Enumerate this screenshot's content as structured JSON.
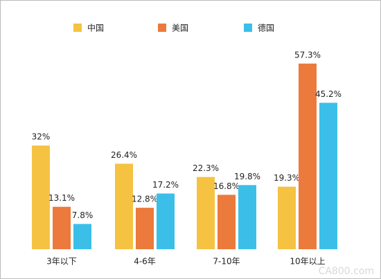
{
  "chart_data": {
    "type": "bar",
    "categories": [
      "3年以下",
      "4-6年",
      "7-10年",
      "10年以上"
    ],
    "series": [
      {
        "name": "中国",
        "color": "#f5c242",
        "values": [
          32,
          26.4,
          22.3,
          19.3
        ],
        "value_labels": [
          "32%",
          "26.4%",
          "22.3%",
          "19.3%"
        ]
      },
      {
        "name": "美国",
        "color": "#ec7a3c",
        "values": [
          13.1,
          12.8,
          16.8,
          57.3
        ],
        "value_labels": [
          "13.1%",
          "12.8%",
          "16.8%",
          "57.3%"
        ]
      },
      {
        "name": "德国",
        "color": "#3bbfe9",
        "values": [
          7.8,
          17.2,
          19.8,
          45.2
        ],
        "value_labels": [
          "7.8%",
          "17.2%",
          "19.8%",
          "45.2%"
        ]
      }
    ],
    "watermark": "CA800.com"
  }
}
